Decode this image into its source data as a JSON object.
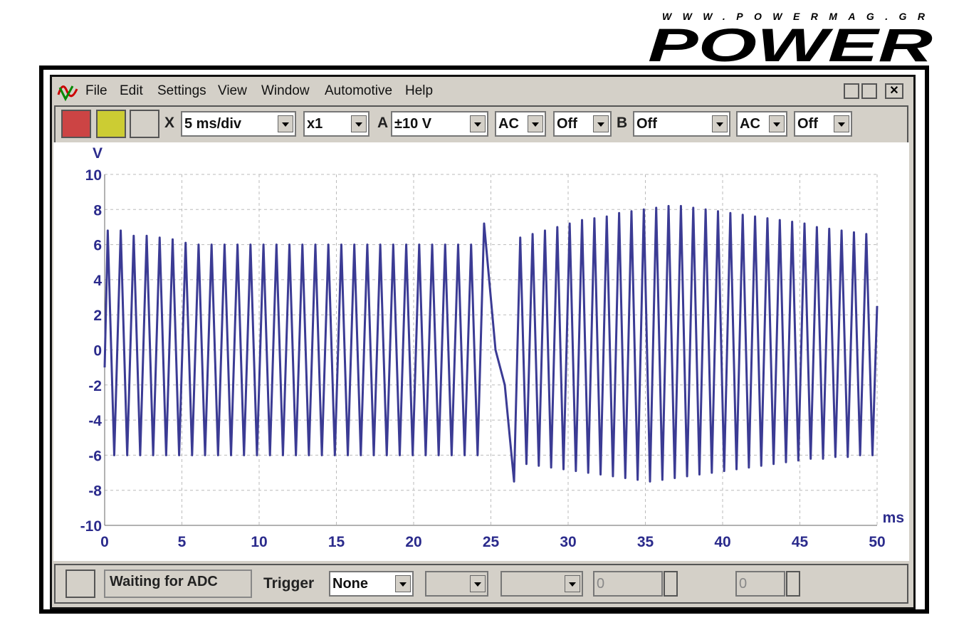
{
  "watermark": {
    "url": "WWW.POWERMAG.GR",
    "logo": "POWER"
  },
  "menu": [
    "File",
    "Edit",
    "Settings",
    "View",
    "Window",
    "Automotive",
    "Help"
  ],
  "toolbar": {
    "x_label": "X",
    "timebase": "5 ms/div",
    "multiplier": "x1",
    "a_label": "A",
    "a_range": "±10 V",
    "a_coupling": "AC",
    "a_option": "Off",
    "b_label": "B",
    "b_range": "Off",
    "b_coupling": "AC",
    "b_option": "Off"
  },
  "chart_data": {
    "type": "line",
    "y_unit": "V",
    "x_unit": "ms",
    "x": [
      0,
      0.2,
      0.62,
      1.04,
      1.46,
      1.88,
      2.3,
      2.72,
      3.14,
      3.56,
      3.98,
      4.4,
      4.82,
      5.24,
      5.66,
      6.08,
      6.5,
      6.92,
      7.34,
      7.76,
      8.18,
      8.6,
      9.02,
      9.44,
      9.86,
      10.28,
      10.7,
      11.12,
      11.54,
      11.96,
      12.38,
      12.8,
      13.22,
      13.64,
      14.06,
      14.48,
      14.9,
      15.32,
      15.74,
      16.16,
      16.58,
      17.0,
      17.42,
      17.84,
      18.26,
      18.68,
      19.1,
      19.52,
      19.94,
      20.36,
      20.78,
      21.2,
      21.62,
      22.04,
      22.46,
      22.88,
      23.3,
      23.72,
      24.14,
      24.56,
      25.3,
      25.9,
      26.5,
      26.9,
      27.3,
      27.7,
      28.1,
      28.5,
      28.9,
      29.3,
      29.7,
      30.1,
      30.5,
      30.9,
      31.3,
      31.7,
      32.1,
      32.5,
      32.9,
      33.3,
      33.7,
      34.1,
      34.5,
      34.9,
      35.3,
      35.7,
      36.1,
      36.5,
      36.9,
      37.3,
      37.7,
      38.1,
      38.5,
      38.9,
      39.3,
      39.7,
      40.1,
      40.5,
      40.9,
      41.3,
      41.7,
      42.1,
      42.5,
      42.9,
      43.3,
      43.7,
      44.1,
      44.5,
      44.9,
      45.3,
      45.7,
      46.1,
      46.5,
      46.9,
      47.3,
      47.7,
      48.1,
      48.5,
      48.9,
      49.3,
      49.7,
      50.0
    ],
    "series": [
      {
        "color": "#3b3b94",
        "values": [
          -1,
          6.8,
          -6,
          6.8,
          -6,
          6.5,
          -6,
          6.5,
          -6,
          6.4,
          -6,
          6.3,
          -6,
          6.1,
          -6,
          6,
          -6,
          6,
          -6,
          6,
          -6,
          6,
          -6,
          6,
          -6,
          6,
          -6,
          6,
          -6,
          6,
          -6,
          6,
          -6,
          6,
          -6,
          6,
          -6,
          6,
          -6,
          6,
          -6,
          6,
          -6,
          6,
          -6,
          6,
          -6,
          6,
          -6,
          6,
          -6,
          6,
          -6,
          6,
          -6,
          6,
          -6,
          6,
          -6,
          7.2,
          0,
          -2,
          -7.5,
          6.4,
          -6.5,
          6.6,
          -6.6,
          6.8,
          -6.7,
          7.0,
          -6.8,
          7.2,
          -6.9,
          7.4,
          -7.0,
          7.5,
          -7.1,
          7.6,
          -7.2,
          7.8,
          -7.3,
          7.9,
          -7.4,
          8.0,
          -7.5,
          8.1,
          -7.4,
          8.2,
          -7.3,
          8.2,
          -7.2,
          8.1,
          -7.1,
          8.0,
          -7.0,
          7.9,
          -6.9,
          7.8,
          -6.8,
          7.7,
          -6.7,
          7.6,
          -6.6,
          7.5,
          -6.5,
          7.4,
          -6.4,
          7.3,
          -6.3,
          7.2,
          -6.2,
          7.0,
          -6.2,
          6.9,
          -6.1,
          6.8,
          -6.1,
          6.7,
          -6.0,
          6.6,
          -6.0,
          2.5
        ]
      }
    ],
    "xlim": [
      0,
      50
    ],
    "ylim": [
      -10,
      10
    ],
    "xticks": [
      0,
      5,
      10,
      15,
      20,
      25,
      30,
      35,
      40,
      45,
      50
    ],
    "yticks": [
      -10,
      -8,
      -6,
      -4,
      -2,
      0,
      2,
      4,
      6,
      8,
      10
    ],
    "grid": true
  },
  "status": {
    "message": "Waiting for ADC",
    "trigger_label": "Trigger",
    "trigger": "None",
    "spin_1": 0,
    "spin_2": 0
  }
}
